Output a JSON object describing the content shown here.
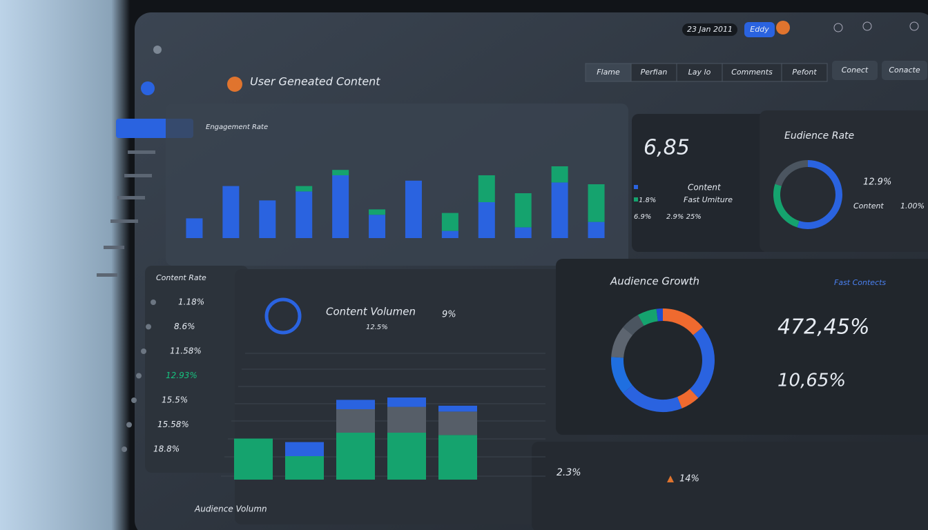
{
  "header": {
    "title": "User Geneated Content",
    "date": "23 Jan 2011",
    "user": "Eddy"
  },
  "tabs": [
    "Flame",
    "Perfian",
    "Lay lo",
    "Comments",
    "Pefont"
  ],
  "buttons": [
    "Conect",
    "Conacte"
  ],
  "engagement_chart": {
    "type": "bar",
    "title": "Engagement Rate",
    "categories": [
      null,
      null,
      null,
      null,
      null,
      null,
      null,
      null,
      null,
      null,
      null,
      null
    ],
    "ylim": [
      0,
      100
    ],
    "series": [
      {
        "color": "#2a63e0",
        "values": [
          22,
          58,
          42,
          52,
          70,
          26,
          64,
          8,
          40,
          12,
          62,
          18
        ]
      },
      {
        "color": "#15a36e",
        "values": [
          0,
          0,
          0,
          6,
          6,
          6,
          0,
          20,
          30,
          38,
          18,
          42
        ]
      }
    ]
  },
  "stat_card": {
    "value": "6,85",
    "legend": [
      "Content",
      "Fast Umiture"
    ],
    "rows": [
      "1.8%",
      "6.9%",
      "2.9% 25%"
    ]
  },
  "audience_rate": {
    "type": "pie",
    "title": "Eudience Rate",
    "label_top": "12.9%",
    "label_bottom": "Content",
    "label_bottom_value": "1.00%",
    "segments": [
      {
        "color": "#2a63e0",
        "value": 55
      },
      {
        "color": "#15a36e",
        "value": 25
      },
      {
        "color": "#4b5560",
        "value": 20
      }
    ]
  },
  "content_rate": {
    "title": "Content Rate",
    "values": [
      "1.18%",
      "8.6%",
      "11.58%",
      "12.93%",
      "15.5%",
      "15.58%",
      "18.8%"
    ]
  },
  "volume_chart": {
    "type": "bar",
    "title": "Content Volumen",
    "pct": "9%",
    "legend": "12.5%",
    "footer": "Audience Volumn",
    "categories": [
      null,
      null,
      null,
      null,
      null
    ],
    "ylim": [
      0,
      100
    ],
    "series": [
      {
        "color": "#15a36e",
        "values": [
          35,
          20,
          40,
          40,
          38
        ]
      },
      {
        "color": "#565e68",
        "values": [
          0,
          0,
          20,
          22,
          20
        ]
      },
      {
        "color": "#2a63e0",
        "values": [
          0,
          12,
          8,
          8,
          5
        ]
      }
    ]
  },
  "audience_growth": {
    "type": "pie",
    "title": "Audience Growth",
    "link": "Fast Contects",
    "big": "472,45%",
    "second": "10,65%",
    "segments": [
      {
        "color": "#ef6a2f",
        "value": 14
      },
      {
        "color": "#2a63e0",
        "value": 24
      },
      {
        "color": "#ef6a2f",
        "value": 6
      },
      {
        "color": "#2a63e0",
        "value": 20
      },
      {
        "color": "#1f6fe0",
        "value": 12
      },
      {
        "color": "#5d6570",
        "value": 10
      },
      {
        "color": "#4b5560",
        "value": 6
      },
      {
        "color": "#15a36e",
        "value": 6
      },
      {
        "color": "#1f4fd0",
        "value": 2
      }
    ]
  },
  "bottom_row": [
    "2.3%",
    "14%"
  ]
}
